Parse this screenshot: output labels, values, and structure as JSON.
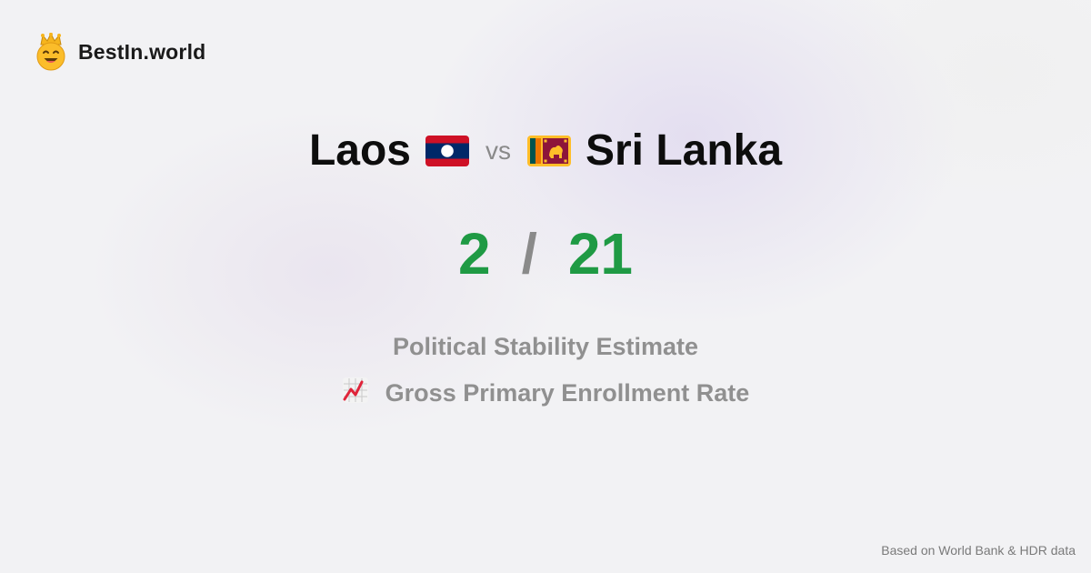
{
  "brand": {
    "name": "BestIn.world",
    "logo_icon": "smiling-crown-face-icon"
  },
  "comparison": {
    "left_country": "Laos",
    "left_flag_icon": "laos-flag-icon",
    "vs_label": "vs",
    "right_country": "Sri Lanka",
    "right_flag_icon": "sri-lanka-flag-icon"
  },
  "scores": {
    "left": "2",
    "separator": "/",
    "right": "21",
    "color": "#1f9a44"
  },
  "metrics": [
    {
      "label": "Political Stability Estimate",
      "icon": ""
    },
    {
      "label": "Gross Primary Enrollment Rate",
      "icon": "chart-decreasing-icon"
    }
  ],
  "footer": {
    "source": "Based on World Bank & HDR data"
  }
}
